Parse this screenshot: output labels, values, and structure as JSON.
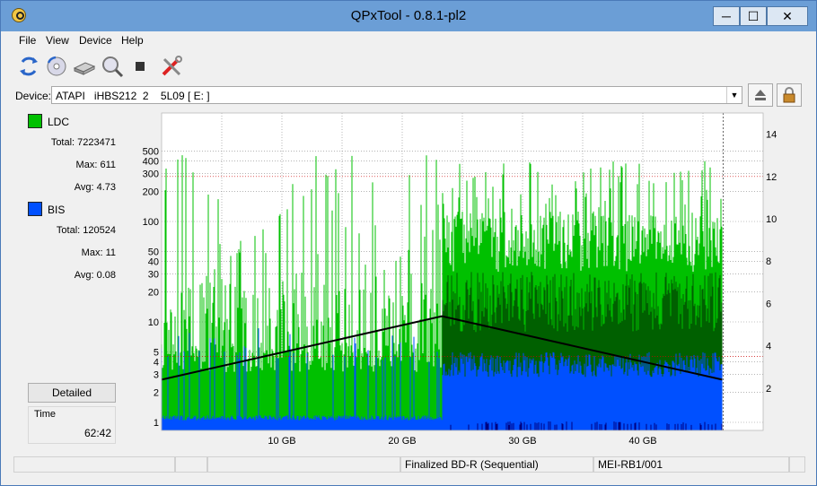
{
  "window": {
    "title": "QPxTool - 0.8.1-pl2",
    "minimize_glyph": "─",
    "maximize_glyph": "☐",
    "close_glyph": "✕"
  },
  "menu": {
    "items": [
      {
        "label": "File"
      },
      {
        "label": "View"
      },
      {
        "label": "Device"
      },
      {
        "label": "Help"
      }
    ]
  },
  "toolbar": {
    "buttons": [
      {
        "icon": "refresh-icon"
      },
      {
        "icon": "disc-info-icon"
      },
      {
        "icon": "drive-icon"
      },
      {
        "icon": "scan-icon"
      },
      {
        "icon": "stop-icon"
      },
      {
        "icon": "tools-icon"
      }
    ]
  },
  "device": {
    "label": "Device:",
    "value": "ATAPI   iHBS212  2    5L09 [ E: ]"
  },
  "stats": {
    "ldc": {
      "label": "LDC",
      "color": "#00c000",
      "total_label": "Total:",
      "total": "7223471",
      "max_label": "Max:",
      "max": "611",
      "avg_label": "Avg:",
      "avg": "4.73"
    },
    "bis": {
      "label": "BIS",
      "color": "#0050ff",
      "total_label": "Total:",
      "total": "120524",
      "max_label": "Max:",
      "max": "11",
      "avg_label": "Avg:",
      "avg": "0.08"
    },
    "detailed_button": "Detailed",
    "time_label": "Time",
    "time_value": "62:42"
  },
  "chart_data": {
    "type": "area",
    "x_unit": "GB",
    "xlim": [
      0,
      50
    ],
    "disc_end": 46.6,
    "x_ticks": [
      {
        "value": 10,
        "label": "10 GB"
      },
      {
        "value": 20,
        "label": "20 GB"
      },
      {
        "value": 30,
        "label": "30 GB"
      },
      {
        "value": 40,
        "label": "40 GB"
      }
    ],
    "y_left_scale": "log",
    "y_left_ticks": [
      "1",
      "2",
      "3",
      "4",
      "5",
      "10",
      "20",
      "30",
      "40",
      "50",
      "100",
      "200",
      "300",
      "400",
      "500"
    ],
    "y_right_ticks": [
      "2",
      "4",
      "6",
      "8",
      "10",
      "12",
      "14"
    ],
    "series": [
      {
        "name": "LDC",
        "color": "#00c000",
        "dark_color": "#006000"
      },
      {
        "name": "BIS",
        "color": "#0050ff",
        "dark_color": "#000080"
      }
    ],
    "speed_curve": {
      "color": "#000000",
      "x": [
        0,
        23.3,
        46.6
      ],
      "y": [
        2.4,
        5.4,
        2.4
      ]
    },
    "threshold_lines": [
      {
        "axis": "right",
        "value": 3.5,
        "color": "#cc0000"
      },
      {
        "axis": "right",
        "value": 12,
        "color": "#cc0000"
      }
    ],
    "grid": true
  },
  "statusbar": {
    "cells": [
      "",
      "",
      "",
      "Finalized BD-R (Sequential)",
      "MEI-RB1/001",
      ""
    ]
  }
}
